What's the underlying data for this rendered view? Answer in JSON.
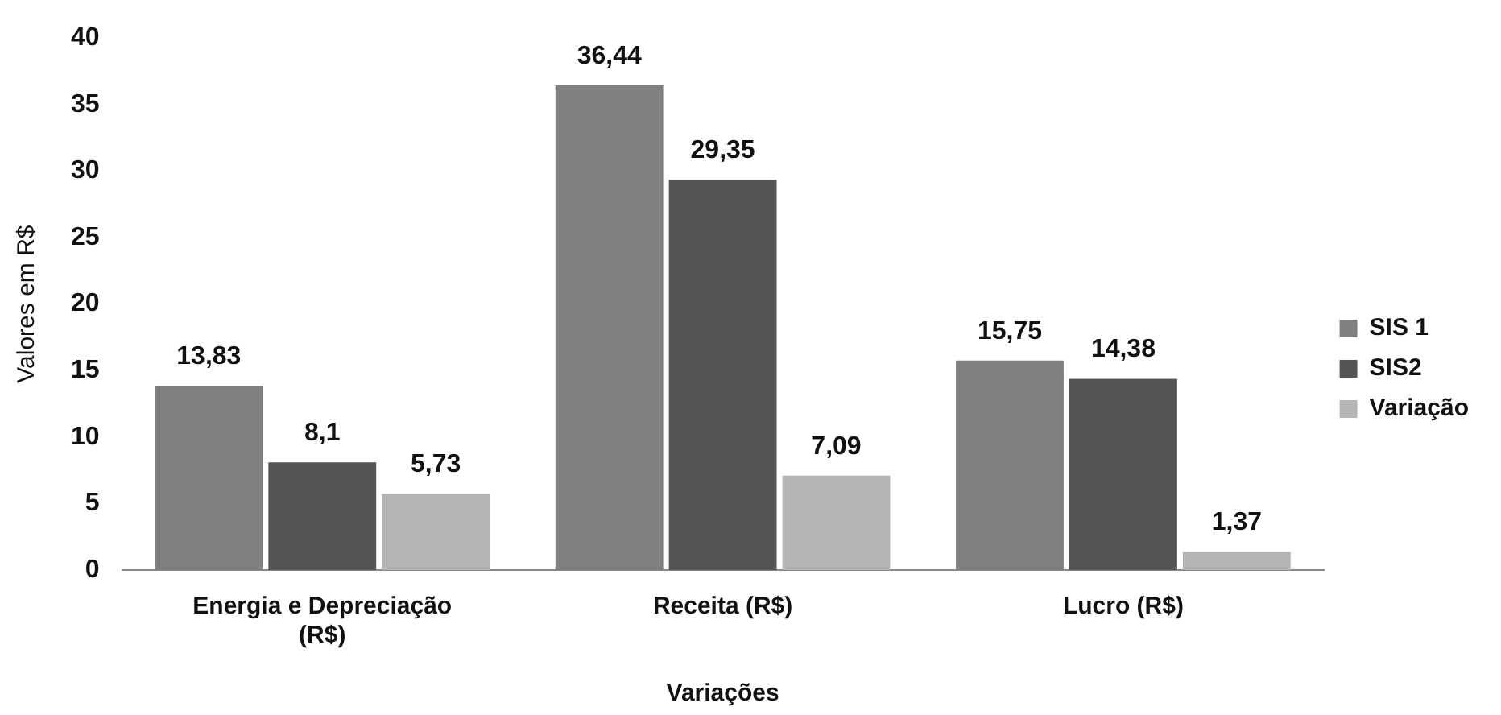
{
  "chart_data": {
    "type": "bar",
    "xlabel": "Variações",
    "ylabel": "Valores em R$",
    "categories": [
      "Energia e Depreciação (R$)",
      "Receita (R$)",
      "Lucro (R$)"
    ],
    "series": [
      {
        "name": "SIS 1",
        "color": "#808080",
        "values": [
          13.83,
          36.44,
          15.75
        ],
        "value_labels": [
          "13,83",
          "36,44",
          "15,75"
        ]
      },
      {
        "name": "SIS2",
        "color": "#555555",
        "values": [
          8.1,
          29.35,
          14.38
        ],
        "value_labels": [
          "8,1",
          "29,35",
          "14,38"
        ]
      },
      {
        "name": "Variação",
        "color": "#b4b4b4",
        "values": [
          5.73,
          7.09,
          1.37
        ],
        "value_labels": [
          "5,73",
          "7,09",
          "1,37"
        ]
      }
    ],
    "ylim": [
      0,
      40
    ],
    "yticks": [
      0,
      5,
      10,
      15,
      20,
      25,
      30,
      35,
      40
    ],
    "grid": false,
    "legend": "right"
  }
}
